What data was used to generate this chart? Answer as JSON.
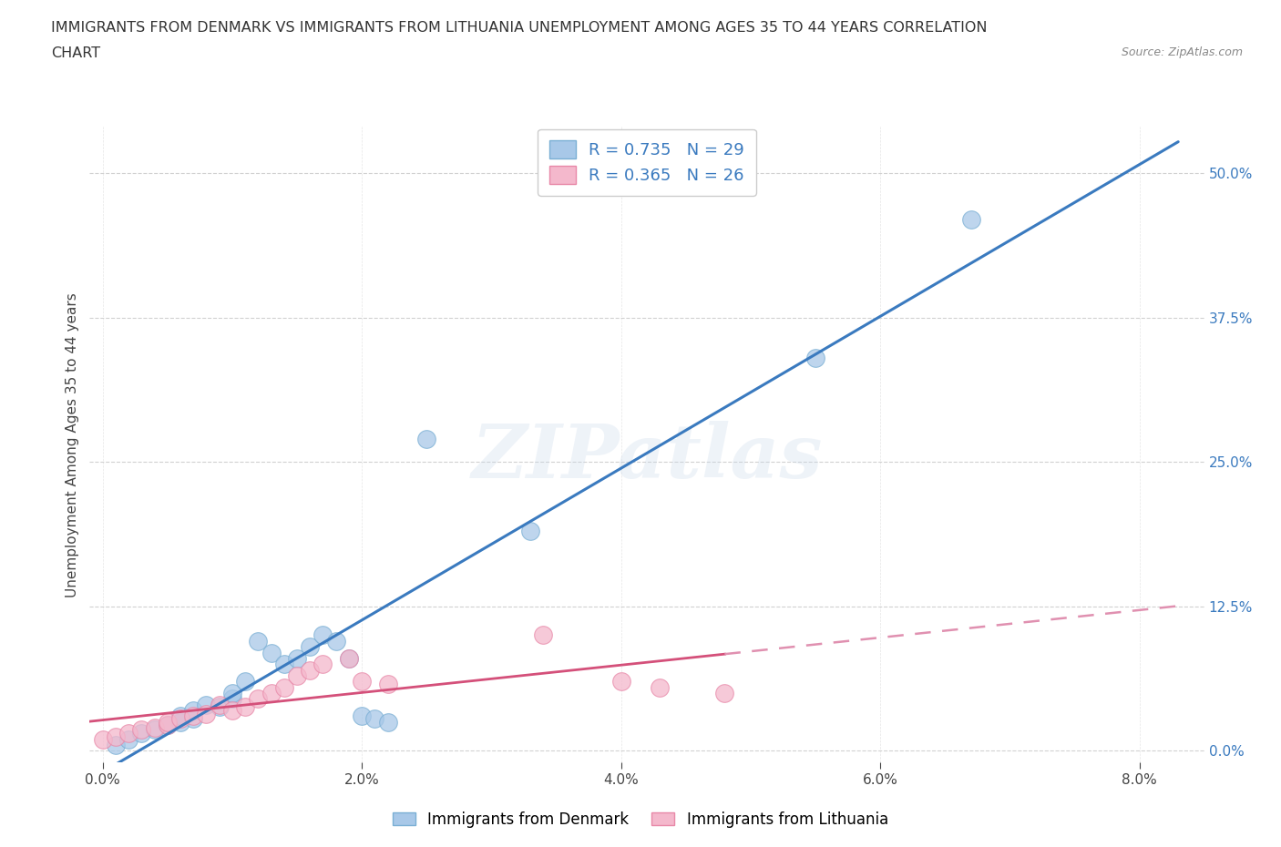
{
  "title_line1": "IMMIGRANTS FROM DENMARK VS IMMIGRANTS FROM LITHUANIA UNEMPLOYMENT AMONG AGES 35 TO 44 YEARS CORRELATION",
  "title_line2": "CHART",
  "source": "Source: ZipAtlas.com",
  "ylabel": "Unemployment Among Ages 35 to 44 years",
  "denmark_color": "#a8c8e8",
  "denmark_edge": "#7aafd4",
  "lithuania_color": "#f4b8cc",
  "lithuania_edge": "#e888a8",
  "denmark_line_color": "#3a7abf",
  "lithuania_line_color": "#d4507a",
  "lithuania_dash_color": "#e090b0",
  "R_denmark": 0.735,
  "N_denmark": 29,
  "R_lithuania": 0.365,
  "N_lithuania": 26,
  "denmark_x": [
    0.001,
    0.002,
    0.003,
    0.004,
    0.005,
    0.006,
    0.006,
    0.007,
    0.007,
    0.008,
    0.009,
    0.01,
    0.01,
    0.011,
    0.012,
    0.013,
    0.014,
    0.015,
    0.016,
    0.017,
    0.018,
    0.019,
    0.02,
    0.021,
    0.022,
    0.025,
    0.033,
    0.055,
    0.067
  ],
  "denmark_y": [
    0.005,
    0.01,
    0.015,
    0.018,
    0.022,
    0.025,
    0.03,
    0.028,
    0.035,
    0.04,
    0.038,
    0.045,
    0.05,
    0.06,
    0.095,
    0.085,
    0.075,
    0.08,
    0.09,
    0.1,
    0.095,
    0.08,
    0.03,
    0.028,
    0.025,
    0.27,
    0.19,
    0.34,
    0.46
  ],
  "lithuania_x": [
    0.0,
    0.001,
    0.002,
    0.003,
    0.004,
    0.005,
    0.005,
    0.006,
    0.007,
    0.008,
    0.009,
    0.01,
    0.011,
    0.012,
    0.013,
    0.014,
    0.015,
    0.016,
    0.017,
    0.019,
    0.02,
    0.022,
    0.034,
    0.04,
    0.043,
    0.048
  ],
  "lithuania_y": [
    0.01,
    0.012,
    0.015,
    0.018,
    0.02,
    0.022,
    0.025,
    0.028,
    0.03,
    0.032,
    0.04,
    0.035,
    0.038,
    0.045,
    0.05,
    0.055,
    0.065,
    0.07,
    0.075,
    0.08,
    0.06,
    0.058,
    0.1,
    0.06,
    0.055,
    0.05
  ],
  "xlim": [
    -0.001,
    0.085
  ],
  "ylim": [
    -0.01,
    0.54
  ],
  "x_ticks": [
    0.0,
    0.02,
    0.04,
    0.06,
    0.08
  ],
  "y_ticks": [
    0.0,
    0.125,
    0.25,
    0.375,
    0.5
  ],
  "x_tick_labels": [
    "0.0%",
    "2.0%",
    "4.0%",
    "6.0%",
    "8.0%"
  ],
  "y_tick_labels": [
    "0.0%",
    "12.5%",
    "25.0%",
    "37.5%",
    "50.0%"
  ],
  "tick_color_blue": "#3a7abf",
  "tick_color_dark": "#444444",
  "grid_color": "#cccccc",
  "watermark": "ZIPatlas",
  "background_color": "#ffffff",
  "legend_edgecolor": "#cccccc"
}
